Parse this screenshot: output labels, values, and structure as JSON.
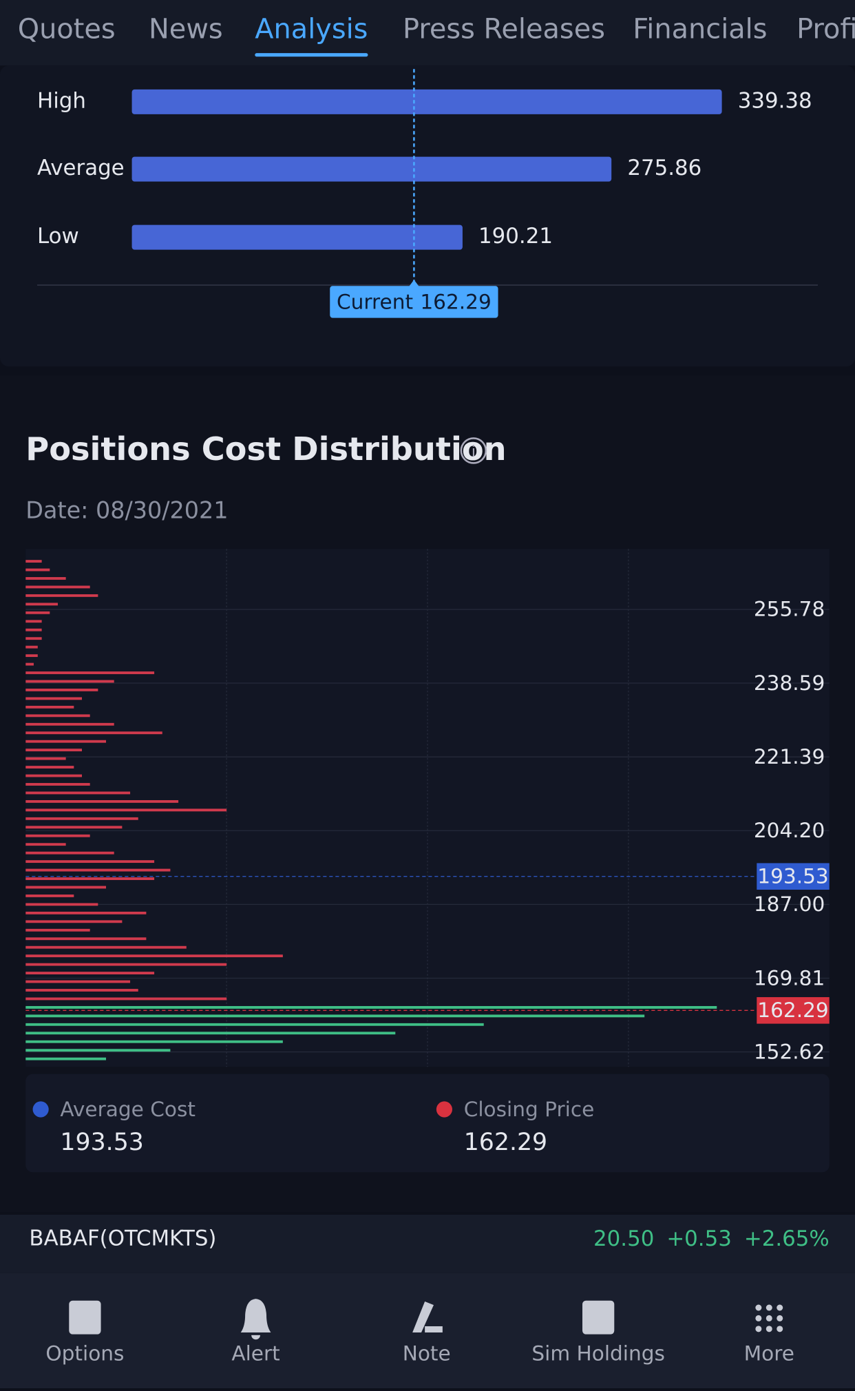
{
  "tabs": {
    "items": [
      "Quotes",
      "News",
      "Analysis",
      "Press Releases",
      "Financials",
      "Profile"
    ],
    "active": 2
  },
  "price_target": {
    "type": "bar",
    "categories": [
      "High",
      "Average",
      "Low"
    ],
    "values": [
      339.38,
      275.86,
      190.21
    ],
    "current_label": "Current",
    "current": 162.29,
    "xlim": [
      0,
      340
    ],
    "color": "#4766d6"
  },
  "chart_data": {
    "type": "histogram",
    "title": "Positions Cost Distribution",
    "subtitle": "Date: 08/30/2021",
    "bins": [
      150,
      152,
      154,
      156,
      158,
      160,
      162,
      164,
      166,
      168,
      170,
      172,
      174,
      176,
      178,
      180,
      182,
      184,
      186,
      188,
      190,
      192,
      194,
      196,
      198,
      200,
      202,
      204,
      206,
      208,
      210,
      212,
      214,
      216,
      218,
      220,
      222,
      224,
      226,
      228,
      230,
      232,
      234,
      236,
      238,
      240,
      242,
      244,
      246,
      248,
      250,
      252,
      254,
      256,
      258,
      260,
      262,
      264,
      266,
      268
    ],
    "values": [
      10,
      18,
      32,
      46,
      57,
      77,
      86,
      25,
      14,
      13,
      16,
      25,
      32,
      20,
      15,
      8,
      12,
      15,
      9,
      6,
      10,
      16,
      18,
      16,
      11,
      5,
      8,
      12,
      14,
      25,
      19,
      13,
      8,
      7,
      6,
      5,
      7,
      10,
      17,
      11,
      8,
      6,
      7,
      9,
      11,
      16,
      1,
      1.5,
      1.5,
      2,
      2,
      2,
      3,
      4,
      9,
      8,
      5,
      3,
      2
    ],
    "xlim": [
      0,
      100
    ],
    "ylim": [
      150,
      268
    ],
    "yticks": [
      152.62,
      169.81,
      {
        "value": 187,
        "label": "187.00"
      },
      {
        "value": 204.2,
        "label": "204.20"
      },
      221.39,
      238.59,
      255.78
    ],
    "colors": {
      "above": "#d03a4d",
      "below": "#3fbf86"
    },
    "average_cost": {
      "label": "Average Cost",
      "value": 193.53,
      "color": "#2f5bd0"
    },
    "closing_price": {
      "label": "Closing Price",
      "value": 162.29,
      "color": "#d8323f"
    },
    "grid": true
  },
  "ticker": {
    "symbol": "BABAF(OTCMKTS)",
    "price": "20.50",
    "change": "+0.53",
    "change_pct": "+2.65%"
  },
  "nav": [
    "Options",
    "Alert",
    "Note",
    "Sim Holdings",
    "More"
  ]
}
